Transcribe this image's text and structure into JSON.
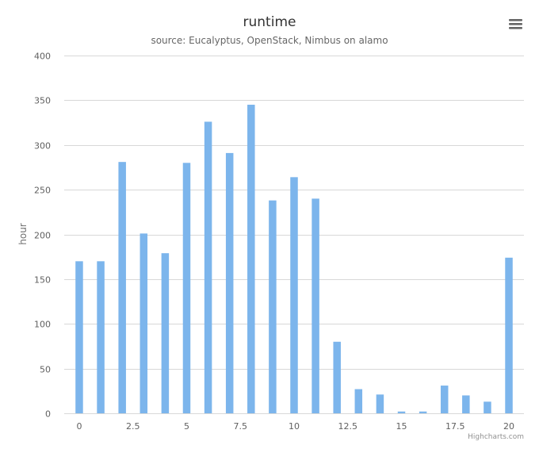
{
  "chart_data": {
    "type": "bar",
    "title": "runtime",
    "subtitle": "source: Eucalyptus, OpenStack, Nimbus on alamo",
    "xlabel": "",
    "ylabel": "hour",
    "x": [
      0,
      1,
      2,
      3,
      4,
      5,
      6,
      7,
      8,
      9,
      10,
      11,
      12,
      13,
      14,
      15,
      16,
      17,
      18,
      19,
      20
    ],
    "values": [
      170,
      170,
      281,
      201,
      179,
      280,
      326,
      291,
      345,
      238,
      264,
      240,
      80,
      27,
      21,
      2,
      2,
      31,
      20,
      13,
      174
    ],
    "xlim": [
      -0.7,
      20.7
    ],
    "ylim": [
      0,
      400
    ],
    "x_ticks": [
      0,
      2.5,
      5,
      7.5,
      10,
      12.5,
      15,
      17.5,
      20
    ],
    "x_tick_labels": [
      "0",
      "2.5",
      "5",
      "7.5",
      "10",
      "12.5",
      "15",
      "17.5",
      "20"
    ],
    "y_ticks": [
      0,
      50,
      100,
      150,
      200,
      250,
      300,
      350,
      400
    ],
    "y_tick_labels": [
      "0",
      "50",
      "100",
      "150",
      "200",
      "250",
      "300",
      "350",
      "400"
    ],
    "grid": true,
    "legend": false,
    "colors": {
      "bar": "#7cb5ec",
      "grid": "#d8d8d8"
    }
  },
  "credits": "Highcharts.com",
  "menu": {
    "icon": "menu-icon"
  }
}
